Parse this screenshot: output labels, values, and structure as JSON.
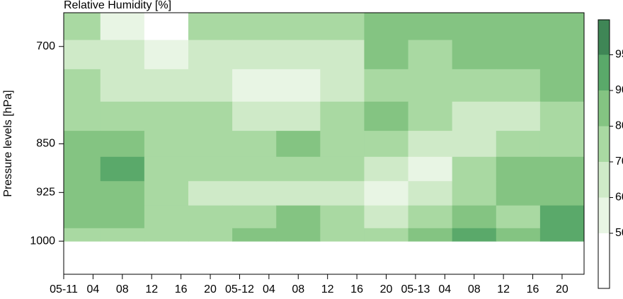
{
  "chart_data": {
    "type": "heatmap",
    "title": "Relative Humidity [%]",
    "y_label": "Pressure levels [hPa]",
    "xlim": [
      0,
      71
    ],
    "xticks": [
      {
        "value": 0,
        "label": "05-11"
      },
      {
        "value": 4,
        "label": "04"
      },
      {
        "value": 8,
        "label": "08"
      },
      {
        "value": 12,
        "label": "12"
      },
      {
        "value": 16,
        "label": "16"
      },
      {
        "value": 20,
        "label": "20"
      },
      {
        "value": 24,
        "label": "05-12"
      },
      {
        "value": 28,
        "label": "04"
      },
      {
        "value": 32,
        "label": "08"
      },
      {
        "value": 36,
        "label": "12"
      },
      {
        "value": 40,
        "label": "16"
      },
      {
        "value": 44,
        "label": "20"
      },
      {
        "value": 48,
        "label": "05-13"
      },
      {
        "value": 52,
        "label": "04"
      },
      {
        "value": 56,
        "label": "08"
      },
      {
        "value": 60,
        "label": "12"
      },
      {
        "value": 64,
        "label": "16"
      },
      {
        "value": 68,
        "label": "20"
      }
    ],
    "ylim": [
      1051,
      648
    ],
    "yticks": [
      700,
      850,
      925,
      1000
    ],
    "rh": {
      "x": [
        2,
        8,
        14,
        20,
        26,
        32,
        38,
        44,
        50,
        56,
        62,
        68
      ],
      "levels": [
        670,
        710,
        760,
        810,
        850,
        890,
        925,
        965,
        995
      ],
      "values": [
        [
          70,
          55,
          45,
          75,
          75,
          75,
          75,
          80,
          80,
          80,
          80,
          85
        ],
        [
          65,
          60,
          55,
          60,
          60,
          60,
          65,
          80,
          75,
          80,
          80,
          80
        ],
        [
          70,
          65,
          60,
          60,
          55,
          55,
          60,
          75,
          70,
          70,
          75,
          80
        ],
        [
          75,
          75,
          70,
          70,
          65,
          65,
          70,
          80,
          70,
          60,
          65,
          75
        ],
        [
          80,
          88,
          75,
          75,
          75,
          80,
          75,
          70,
          65,
          65,
          70,
          75
        ],
        [
          85,
          92,
          75,
          70,
          70,
          70,
          70,
          60,
          55,
          70,
          80,
          80
        ],
        [
          85,
          85,
          75,
          65,
          65,
          68,
          65,
          55,
          60,
          70,
          80,
          88
        ],
        [
          80,
          80,
          75,
          72,
          75,
          80,
          72,
          65,
          78,
          85,
          75,
          90
        ],
        [
          75,
          78,
          75,
          75,
          85,
          80,
          75,
          75,
          85,
          90,
          80,
          92
        ]
      ]
    },
    "colorbar": {
      "levels": [
        50,
        60,
        70,
        80,
        90,
        95
      ],
      "colors": [
        "#ffffff",
        "#e8f5e4",
        "#cfeac8",
        "#a9d9a2",
        "#84c482",
        "#5aa96a",
        "#3f8656"
      ]
    }
  }
}
